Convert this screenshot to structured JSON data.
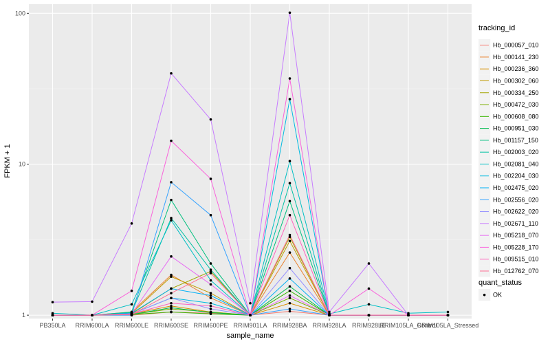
{
  "chart_data": {
    "type": "line",
    "xlabel": "sample_name",
    "ylabel": "FPKM + 1",
    "y_scale": "log10",
    "ylim": [
      0.95,
      115
    ],
    "y_ticks": [
      1,
      10,
      100
    ],
    "y_tick_labels": [
      "1",
      "10",
      "100"
    ],
    "grid": true,
    "panel_background": "#ebebeb",
    "legend_position": "right",
    "categories": [
      "PB350LA",
      "RRIM600LA",
      "RRIM600LE",
      "RRIM600SE",
      "RRIM600PE",
      "RRIM901LA",
      "RRIM928BA",
      "RRIM928LA",
      "RRIM928LE",
      "RRIM105LA_Control",
      "RRIM105LA_Stressed"
    ],
    "legend_title": "tracking_id",
    "shape_legend_title": "quant_status",
    "shape_legend_entries": [
      "OK"
    ],
    "series": [
      {
        "name": "Hb_000057_010",
        "color": "#F8766D",
        "values": [
          1.0,
          1.0,
          1.0,
          1.05,
          1.03,
          1.0,
          1.06,
          1.0,
          1.0,
          1.0,
          1.0
        ]
      },
      {
        "name": "Hb_000141_230",
        "color": "#EA8331",
        "values": [
          1.0,
          1.0,
          1.05,
          1.85,
          1.3,
          1.0,
          2.6,
          1.0,
          1.0,
          1.0,
          1.0
        ]
      },
      {
        "name": "Hb_000236_360",
        "color": "#D89000",
        "values": [
          1.0,
          1.0,
          1.02,
          1.15,
          1.05,
          1.0,
          1.2,
          1.0,
          1.0,
          1.0,
          1.0
        ]
      },
      {
        "name": "Hb_000302_060",
        "color": "#C09B00",
        "values": [
          1.0,
          1.0,
          1.03,
          1.8,
          1.4,
          1.0,
          3.1,
          1.0,
          1.0,
          1.0,
          1.0
        ]
      },
      {
        "name": "Hb_000334_250",
        "color": "#A3A500",
        "values": [
          1.0,
          1.0,
          1.02,
          1.5,
          1.95,
          1.0,
          3.3,
          1.0,
          1.0,
          1.0,
          1.0
        ]
      },
      {
        "name": "Hb_000472_030",
        "color": "#7CAE00",
        "values": [
          1.0,
          1.0,
          1.01,
          1.1,
          1.05,
          1.0,
          1.3,
          1.0,
          1.0,
          1.0,
          1.0
        ]
      },
      {
        "name": "Hb_000608_080",
        "color": "#39B600",
        "values": [
          1.0,
          1.0,
          1.01,
          1.05,
          1.02,
          1.0,
          1.45,
          1.0,
          1.0,
          1.0,
          1.0
        ]
      },
      {
        "name": "Hb_000951_030",
        "color": "#00BB4E",
        "values": [
          1.0,
          1.0,
          1.01,
          1.12,
          1.04,
          1.0,
          1.55,
          1.0,
          1.0,
          1.0,
          1.0
        ]
      },
      {
        "name": "Hb_001157_150",
        "color": "#00BF7D",
        "values": [
          1.0,
          1.0,
          1.05,
          5.8,
          2.2,
          1.0,
          5.7,
          1.0,
          1.0,
          1.0,
          1.0
        ]
      },
      {
        "name": "Hb_002003_020",
        "color": "#00C1A3",
        "values": [
          1.0,
          1.0,
          1.04,
          4.4,
          2.0,
          1.0,
          7.5,
          1.0,
          1.0,
          1.0,
          1.0
        ]
      },
      {
        "name": "Hb_002081_040",
        "color": "#00BFC4",
        "values": [
          1.03,
          1.0,
          1.18,
          4.25,
          1.7,
          1.0,
          10.5,
          1.02,
          1.18,
          1.03,
          1.05
        ]
      },
      {
        "name": "Hb_002204_030",
        "color": "#00BAE0",
        "values": [
          1.0,
          1.0,
          1.02,
          1.3,
          1.2,
          1.0,
          27.0,
          1.0,
          1.0,
          1.0,
          1.0
        ]
      },
      {
        "name": "Hb_002475_020",
        "color": "#00B0F6",
        "values": [
          1.0,
          1.0,
          1.03,
          1.5,
          1.35,
          1.0,
          1.75,
          1.0,
          1.0,
          1.0,
          1.0
        ]
      },
      {
        "name": "Hb_002556_020",
        "color": "#35A2FF",
        "values": [
          1.0,
          1.0,
          1.0,
          7.6,
          4.6,
          1.0,
          1.1,
          1.0,
          1.0,
          1.0,
          1.0
        ]
      },
      {
        "name": "Hb_002622_020",
        "color": "#9590FF",
        "values": [
          1.0,
          1.0,
          1.02,
          1.3,
          1.1,
          1.0,
          2.05,
          1.0,
          1.0,
          1.0,
          1.0
        ]
      },
      {
        "name": "Hb_002671_110",
        "color": "#C77CFF",
        "values": [
          1.22,
          1.23,
          4.05,
          40.0,
          19.8,
          1.2,
          101.0,
          1.05,
          2.2,
          1.0,
          1.0
        ]
      },
      {
        "name": "Hb_005218_070",
        "color": "#E76BF3",
        "values": [
          1.0,
          1.0,
          1.02,
          2.45,
          1.6,
          1.0,
          1.35,
          1.0,
          1.0,
          1.0,
          1.0
        ]
      },
      {
        "name": "Hb_005228_170",
        "color": "#FA62DB",
        "values": [
          1.0,
          1.0,
          1.45,
          14.3,
          8.0,
          1.0,
          37.0,
          1.0,
          1.5,
          1.0,
          1.0
        ]
      },
      {
        "name": "Hb_009515_010",
        "color": "#FF62BC",
        "values": [
          1.0,
          1.0,
          1.02,
          1.2,
          1.15,
          1.0,
          4.6,
          1.0,
          1.0,
          1.0,
          1.0
        ]
      },
      {
        "name": "Hb_012762_070",
        "color": "#FF6C91",
        "values": [
          1.0,
          1.0,
          1.01,
          1.4,
          1.9,
          1.0,
          3.4,
          1.0,
          1.0,
          1.0,
          1.0
        ]
      }
    ]
  }
}
